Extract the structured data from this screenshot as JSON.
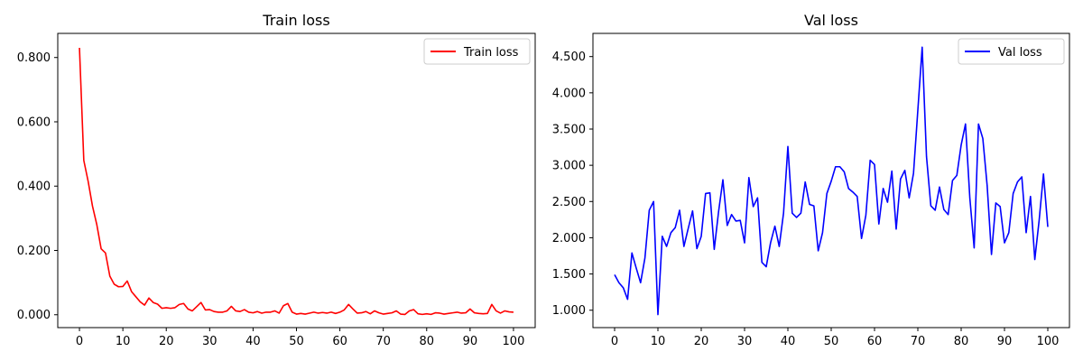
{
  "chart_data": [
    {
      "type": "line",
      "title": "Train loss",
      "xlabel": "",
      "ylabel": "",
      "xlim": [
        -5,
        105
      ],
      "ylim": [
        -0.04,
        0.875
      ],
      "xticks": [
        0,
        10,
        20,
        30,
        40,
        50,
        60,
        70,
        80,
        90,
        100
      ],
      "xtick_labels": [
        "0",
        "10",
        "20",
        "30",
        "40",
        "50",
        "60",
        "70",
        "80",
        "90",
        "100"
      ],
      "yticks": [
        0,
        0.2,
        0.4,
        0.6,
        0.8
      ],
      "ytick_labels": [
        "0.000",
        "0.200",
        "0.400",
        "0.600",
        "0.800"
      ],
      "grid": false,
      "legend": {
        "position": "top-right"
      },
      "series": [
        {
          "name": "Train loss",
          "color": "#ff0000",
          "x": [
            0,
            1,
            2,
            3,
            4,
            5,
            6,
            7,
            8,
            9,
            10,
            11,
            12,
            13,
            14,
            15,
            16,
            17,
            18,
            19,
            20,
            21,
            22,
            23,
            24,
            25,
            26,
            27,
            28,
            29,
            30,
            31,
            32,
            33,
            34,
            35,
            36,
            37,
            38,
            39,
            40,
            41,
            42,
            43,
            44,
            45,
            46,
            47,
            48,
            49,
            50,
            51,
            52,
            53,
            54,
            55,
            56,
            57,
            58,
            59,
            60,
            61,
            62,
            63,
            64,
            65,
            66,
            67,
            68,
            69,
            70,
            71,
            72,
            73,
            74,
            75,
            76,
            77,
            78,
            79,
            80,
            81,
            82,
            83,
            84,
            85,
            86,
            87,
            88,
            89,
            90,
            91,
            92,
            93,
            94,
            95,
            96,
            97,
            98,
            99,
            100
          ],
          "values": [
            0.83,
            0.48,
            0.415,
            0.338,
            0.28,
            0.205,
            0.192,
            0.12,
            0.095,
            0.087,
            0.088,
            0.105,
            0.072,
            0.056,
            0.04,
            0.03,
            0.052,
            0.038,
            0.033,
            0.02,
            0.022,
            0.02,
            0.022,
            0.032,
            0.035,
            0.018,
            0.012,
            0.025,
            0.038,
            0.015,
            0.016,
            0.01,
            0.008,
            0.008,
            0.012,
            0.026,
            0.012,
            0.01,
            0.016,
            0.008,
            0.006,
            0.01,
            0.005,
            0.008,
            0.008,
            0.012,
            0.005,
            0.028,
            0.035,
            0.008,
            0.002,
            0.004,
            0.002,
            0.005,
            0.008,
            0.005,
            0.007,
            0.005,
            0.008,
            0.004,
            0.008,
            0.015,
            0.032,
            0.018,
            0.005,
            0.006,
            0.01,
            0.003,
            0.012,
            0.006,
            0.002,
            0.004,
            0.006,
            0.012,
            0.002,
            0.001,
            0.012,
            0.016,
            0.003,
            0.001,
            0.003,
            0.001,
            0.006,
            0.005,
            0.002,
            0.004,
            0.006,
            0.008,
            0.005,
            0.006,
            0.018,
            0.006,
            0.004,
            0.003,
            0.004,
            0.032,
            0.012,
            0.005,
            0.012,
            0.009,
            0.008
          ]
        }
      ]
    },
    {
      "type": "line",
      "title": "Val loss",
      "xlabel": "",
      "ylabel": "",
      "xlim": [
        -5,
        105
      ],
      "ylim": [
        0.76,
        4.82
      ],
      "xticks": [
        0,
        10,
        20,
        30,
        40,
        50,
        60,
        70,
        80,
        90,
        100
      ],
      "xtick_labels": [
        "0",
        "10",
        "20",
        "30",
        "40",
        "50",
        "60",
        "70",
        "80",
        "90",
        "100"
      ],
      "yticks": [
        1,
        1.5,
        2,
        2.5,
        3,
        3.5,
        4,
        4.5
      ],
      "ytick_labels": [
        "1.000",
        "1.500",
        "2.000",
        "2.500",
        "3.000",
        "3.500",
        "4.000",
        "4.500"
      ],
      "grid": false,
      "legend": {
        "position": "top-right"
      },
      "series": [
        {
          "name": "Val loss",
          "color": "#0000ff",
          "x": [
            0,
            1,
            2,
            3,
            4,
            5,
            6,
            7,
            8,
            9,
            10,
            11,
            12,
            13,
            14,
            15,
            16,
            17,
            18,
            19,
            20,
            21,
            22,
            23,
            24,
            25,
            26,
            27,
            28,
            29,
            30,
            31,
            32,
            33,
            34,
            35,
            36,
            37,
            38,
            39,
            40,
            41,
            42,
            43,
            44,
            45,
            46,
            47,
            48,
            49,
            50,
            51,
            52,
            53,
            54,
            55,
            56,
            57,
            58,
            59,
            60,
            61,
            62,
            63,
            64,
            65,
            66,
            67,
            68,
            69,
            70,
            71,
            72,
            73,
            74,
            75,
            76,
            77,
            78,
            79,
            80,
            81,
            82,
            83,
            84,
            85,
            86,
            87,
            88,
            89,
            90,
            91,
            92,
            93,
            94,
            95,
            96,
            97,
            98,
            99,
            100
          ],
          "values": [
            1.49,
            1.38,
            1.31,
            1.15,
            1.79,
            1.58,
            1.38,
            1.72,
            2.38,
            2.5,
            0.94,
            2.02,
            1.88,
            2.07,
            2.14,
            2.38,
            1.88,
            2.13,
            2.37,
            1.85,
            2.02,
            2.61,
            2.62,
            1.84,
            2.36,
            2.8,
            2.17,
            2.32,
            2.23,
            2.24,
            1.93,
            2.83,
            2.43,
            2.55,
            1.66,
            1.6,
            1.93,
            2.16,
            1.88,
            2.34,
            3.26,
            2.34,
            2.28,
            2.34,
            2.77,
            2.46,
            2.44,
            1.82,
            2.07,
            2.61,
            2.78,
            2.98,
            2.98,
            2.91,
            2.68,
            2.63,
            2.57,
            1.99,
            2.31,
            3.07,
            3.01,
            2.19,
            2.68,
            2.49,
            2.92,
            2.12,
            2.81,
            2.93,
            2.55,
            2.89,
            3.76,
            4.63,
            3.12,
            2.44,
            2.38,
            2.7,
            2.39,
            2.32,
            2.79,
            2.86,
            3.28,
            3.57,
            2.55,
            1.86,
            3.57,
            3.37,
            2.72,
            1.77,
            2.48,
            2.43,
            1.93,
            2.07,
            2.61,
            2.77,
            2.84,
            2.07,
            2.57,
            1.7,
            2.24,
            2.88,
            2.15
          ]
        }
      ]
    }
  ]
}
